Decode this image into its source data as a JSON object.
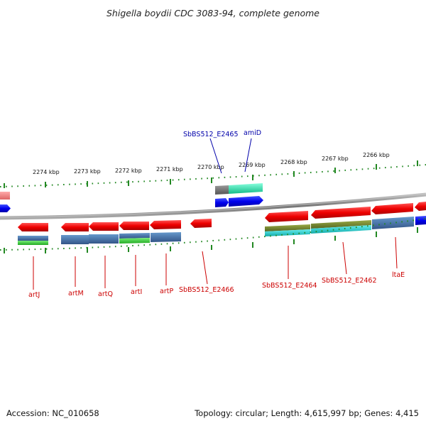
{
  "title": "Shigella boydii CDC 3083-94, complete genome",
  "footer": {
    "accession": "Accession: NC_010658",
    "summary": "Topology: circular; Length: 4,615,997 bp; Genes: 4,415"
  },
  "scale_labels": [
    "2274 kbp",
    "2273 kbp",
    "2272 kbp",
    "2271 kbp",
    "2270 kbp",
    "2269 kbp",
    "2268 kbp",
    "2267 kbp",
    "2266 kbp"
  ],
  "gene_labels": {
    "top": [
      "SbBS512_E2465",
      "amiD"
    ],
    "bottom": [
      "artJ",
      "artM",
      "artQ",
      "artI",
      "artP",
      "SbBS512_E2466",
      "SbBS512_E2464",
      "SbBS512_E2462",
      "ltaE"
    ]
  },
  "colors": {
    "cds": "#ee1111",
    "forward_arrow": "#0000ee",
    "teal": "#22ddaa",
    "steelblue": "#4477aa",
    "green": "#33cc33",
    "olive": "#778833",
    "cyan": "#22cccc",
    "gray": "#777777",
    "pink": "#ee8888",
    "tick": "#228822",
    "backbone": "#888888",
    "label_red": "#cc0000",
    "label_blue": "#0000aa"
  }
}
